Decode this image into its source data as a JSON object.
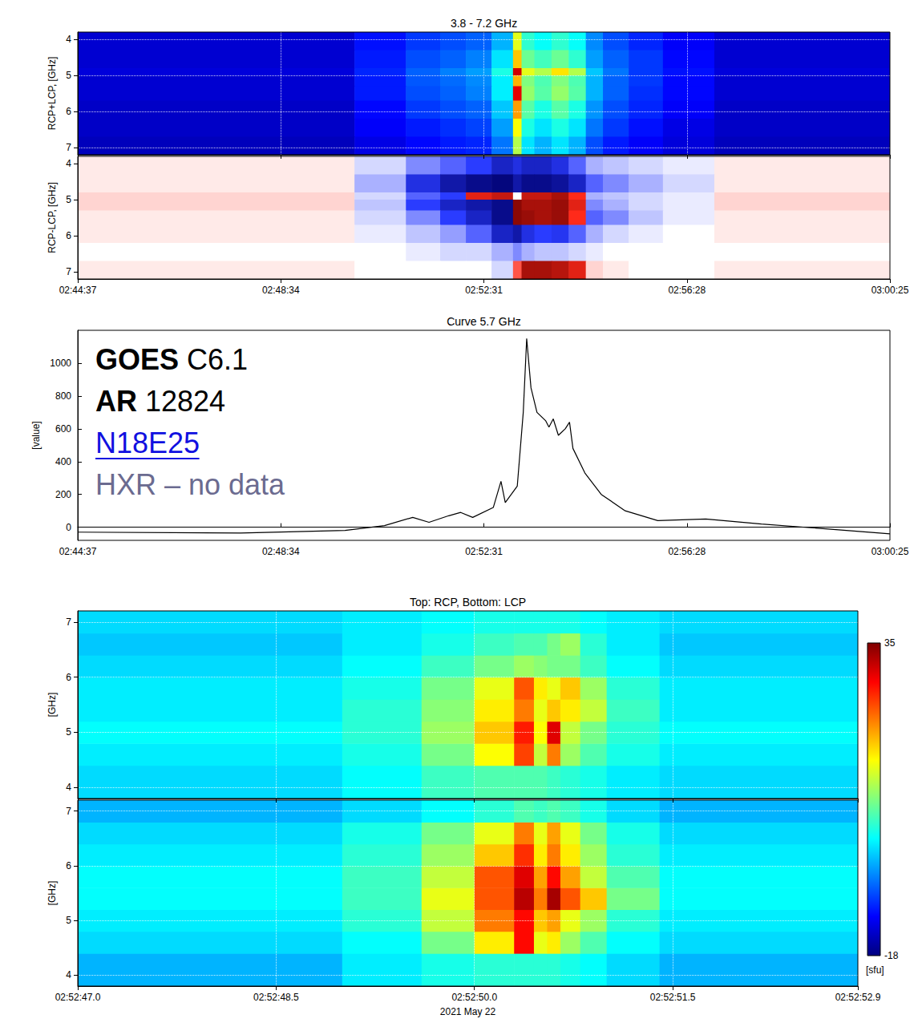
{
  "chart_data": [
    {
      "type": "heatmap",
      "title": "3.8 - 7.2 GHz",
      "ylabel": "RCP+LCP, [GHz]",
      "color": "jet",
      "grid": true,
      "tick_labels": "y",
      "x_edges": [
        9877,
        10200,
        10260,
        10300,
        10330,
        10360,
        10385,
        10395,
        10410,
        10430,
        10450,
        10470,
        10490,
        10520,
        10560,
        10620,
        10825
      ],
      "y_edges": [
        3.8,
        4.3,
        4.8,
        5.0,
        5.3,
        5.7,
        6.2,
        6.7,
        7.2
      ],
      "cells": [
        [
          8,
          14,
          18,
          20,
          22,
          30,
          60,
          42,
          38,
          42,
          38,
          26,
          20,
          16,
          12,
          8
        ],
        [
          8,
          15,
          20,
          22,
          25,
          35,
          68,
          48,
          44,
          48,
          42,
          28,
          22,
          18,
          13,
          8
        ],
        [
          9,
          16,
          22,
          25,
          28,
          40,
          92,
          60,
          55,
          65,
          55,
          32,
          24,
          18,
          14,
          9
        ],
        [
          8,
          15,
          21,
          23,
          26,
          36,
          70,
          50,
          45,
          50,
          45,
          30,
          22,
          18,
          13,
          8
        ],
        [
          8,
          15,
          20,
          22,
          25,
          36,
          90,
          52,
          46,
          52,
          46,
          30,
          22,
          17,
          13,
          8
        ],
        [
          7,
          13,
          18,
          20,
          22,
          32,
          72,
          46,
          40,
          46,
          40,
          27,
          20,
          16,
          12,
          7
        ],
        [
          7,
          12,
          15,
          17,
          19,
          28,
          62,
          40,
          35,
          40,
          35,
          24,
          18,
          14,
          10,
          7
        ],
        [
          6,
          10,
          13,
          15,
          16,
          24,
          55,
          35,
          30,
          35,
          30,
          20,
          15,
          12,
          9,
          6
        ]
      ],
      "zlim": [
        0,
        100
      ],
      "xlim": [
        9877,
        10825
      ],
      "xticks": [
        {
          "value": 9877,
          "label": "02:44:37"
        },
        {
          "value": 10114,
          "label": "02:48:34"
        },
        {
          "value": 10351,
          "label": "02:52:31"
        },
        {
          "value": 10588,
          "label": "02:56:28"
        },
        {
          "value": 10825,
          "label": "03:00:25"
        }
      ],
      "ylim": [
        7.2,
        3.8
      ],
      "yticks": [
        4,
        5,
        6,
        7
      ]
    },
    {
      "type": "heatmap",
      "ylabel": "RCP-LCP, [GHz]",
      "color": "bwr",
      "grid": false,
      "x_edges": [
        9877,
        10200,
        10260,
        10300,
        10330,
        10360,
        10385,
        10395,
        10410,
        10430,
        10450,
        10470,
        10490,
        10520,
        10560,
        10620,
        10825
      ],
      "y_edges": [
        3.8,
        4.3,
        4.8,
        5.0,
        5.3,
        5.7,
        6.2,
        6.7,
        7.2
      ],
      "cells": [
        [
          5,
          -10,
          -30,
          -40,
          -50,
          -70,
          -60,
          -70,
          -70,
          -60,
          -40,
          -20,
          -15,
          -10,
          -5,
          5
        ],
        [
          5,
          -20,
          -60,
          -80,
          -90,
          -95,
          -80,
          -90,
          -90,
          -85,
          -70,
          -40,
          -30,
          -20,
          -10,
          5
        ],
        [
          10,
          -10,
          -40,
          -50,
          60,
          70,
          0,
          70,
          70,
          80,
          50,
          -20,
          -15,
          -10,
          -5,
          10
        ],
        [
          10,
          -15,
          -50,
          -70,
          -80,
          -90,
          90,
          80,
          80,
          85,
          60,
          -30,
          -20,
          -10,
          -5,
          10
        ],
        [
          5,
          -10,
          -30,
          -50,
          -70,
          -90,
          90,
          85,
          80,
          85,
          50,
          -40,
          -30,
          -15,
          -5,
          5
        ],
        [
          5,
          -5,
          -15,
          -25,
          -40,
          -70,
          -80,
          -60,
          -50,
          -55,
          -40,
          -20,
          -10,
          -5,
          0,
          5
        ],
        [
          0,
          0,
          -5,
          -10,
          -10,
          -20,
          -30,
          -20,
          -15,
          -15,
          -10,
          -5,
          0,
          0,
          0,
          0
        ],
        [
          5,
          0,
          0,
          0,
          0,
          -10,
          40,
          80,
          80,
          75,
          60,
          10,
          5,
          0,
          0,
          5
        ]
      ],
      "zlim": [
        -100,
        100
      ],
      "xlim": [
        9877,
        10825
      ],
      "xticks": [
        {
          "value": 9877,
          "label": "02:44:37"
        },
        {
          "value": 10114,
          "label": "02:48:34"
        },
        {
          "value": 10351,
          "label": "02:52:31"
        },
        {
          "value": 10588,
          "label": "02:56:28"
        },
        {
          "value": 10825,
          "label": "03:00:25"
        }
      ],
      "ylim": [
        7.2,
        3.8
      ],
      "yticks": [
        4,
        5,
        6,
        7
      ]
    },
    {
      "type": "line",
      "title": "Curve 5.7 GHz",
      "ylabel": "[value]",
      "color": "#000000",
      "grid": false,
      "annotations": [
        "GOES C6.1",
        "AR 12824",
        "N18E25",
        "HXR – no data"
      ],
      "x": [
        9877,
        10067,
        10189,
        10235,
        10268,
        10287,
        10310,
        10324,
        10338,
        10362,
        10371,
        10376,
        10390,
        10397,
        10401,
        10406,
        10413,
        10423,
        10427,
        10432,
        10438,
        10446,
        10451,
        10455,
        10469,
        10488,
        10516,
        10554,
        10610,
        10675,
        10750,
        10825
      ],
      "values": [
        -30,
        -35,
        -20,
        10,
        60,
        30,
        70,
        90,
        60,
        120,
        280,
        150,
        250,
        700,
        1150,
        850,
        700,
        650,
        610,
        660,
        560,
        600,
        640,
        480,
        330,
        200,
        100,
        40,
        50,
        20,
        -10,
        -40
      ],
      "xlim": [
        9877,
        10825
      ],
      "xticks": [
        {
          "value": 9877,
          "label": "02:44:37"
        },
        {
          "value": 10114,
          "label": "02:48:34"
        },
        {
          "value": 10351,
          "label": "02:52:31"
        },
        {
          "value": 10588,
          "label": "02:56:28"
        },
        {
          "value": 10825,
          "label": "03:00:25"
        }
      ],
      "ylim": [
        -80,
        1200
      ],
      "yticks": [
        0,
        200,
        400,
        600,
        800,
        1000
      ]
    },
    {
      "type": "heatmap",
      "title": "Top: RCP, Bottom: LCP",
      "ylabel": "[GHz]",
      "color": "jet",
      "grid": true,
      "tick_labels": "y",
      "x_edges": [
        10367,
        10369,
        10369.6,
        10370,
        10370.3,
        10370.45,
        10370.55,
        10370.65,
        10370.8,
        10371,
        10371.4,
        10372.9
      ],
      "y_edges": [
        3.8,
        4.4,
        4.8,
        5.2,
        5.6,
        6.0,
        6.4,
        6.8,
        7.2
      ],
      "cells": [
        [
          0,
          2,
          5,
          6,
          6,
          6,
          5,
          4,
          3,
          1,
          0
        ],
        [
          1,
          3,
          8,
          15,
          25,
          12,
          22,
          10,
          6,
          3,
          1
        ],
        [
          2,
          4,
          10,
          18,
          27,
          15,
          30,
          12,
          8,
          4,
          2
        ],
        [
          1,
          4,
          9,
          16,
          22,
          14,
          18,
          16,
          12,
          5,
          1
        ],
        [
          1,
          3,
          8,
          14,
          24,
          16,
          14,
          18,
          10,
          4,
          1
        ],
        [
          0,
          2,
          5,
          8,
          10,
          9,
          8,
          8,
          5,
          2,
          0
        ],
        [
          -1,
          1,
          3,
          5,
          6,
          6,
          8,
          10,
          4,
          1,
          -1
        ],
        [
          0,
          1,
          2,
          3,
          3,
          3,
          3,
          3,
          2,
          1,
          0
        ]
      ],
      "zlim": [
        -18,
        35
      ],
      "xlim": [
        10367,
        10372.9
      ],
      "xticks": [
        {
          "value": 10367,
          "label": "02:52:47.0"
        },
        {
          "value": 10368.5,
          "label": "02:52:48.5"
        },
        {
          "value": 10370,
          "label": "02:52:50.0"
        },
        {
          "value": 10371.5,
          "label": "02:52:51.5"
        },
        {
          "value": 10372.9,
          "label": "02:52:52.9"
        }
      ],
      "ylim": [
        3.8,
        7.2
      ],
      "yticks": [
        4,
        5,
        6,
        7
      ]
    },
    {
      "type": "heatmap",
      "ylabel": "[GHz]",
      "xlabel": "2021 May 22",
      "color": "jet",
      "grid": true,
      "x_edges": [
        10367,
        10369,
        10369.6,
        10370,
        10370.3,
        10370.45,
        10370.55,
        10370.65,
        10370.8,
        10371,
        10371.4,
        10372.9
      ],
      "y_edges": [
        3.8,
        4.4,
        4.8,
        5.2,
        5.6,
        6.0,
        6.4,
        6.8,
        7.2
      ],
      "cells": [
        [
          -2,
          1,
          3,
          4,
          4,
          4,
          4,
          3,
          2,
          0,
          -2
        ],
        [
          0,
          2,
          8,
          16,
          28,
          14,
          16,
          10,
          6,
          2,
          0
        ],
        [
          1,
          4,
          12,
          22,
          28,
          18,
          20,
          14,
          10,
          4,
          1
        ],
        [
          2,
          5,
          14,
          24,
          32,
          22,
          33,
          24,
          18,
          8,
          2
        ],
        [
          2,
          5,
          12,
          24,
          30,
          20,
          28,
          20,
          12,
          6,
          2
        ],
        [
          1,
          4,
          10,
          18,
          26,
          16,
          22,
          16,
          10,
          4,
          1
        ],
        [
          0,
          3,
          8,
          14,
          22,
          14,
          20,
          14,
          8,
          3,
          0
        ],
        [
          -2,
          0,
          2,
          4,
          6,
          5,
          6,
          5,
          3,
          0,
          -2
        ]
      ],
      "zlim": [
        -18,
        35
      ],
      "colorbar": {
        "range": [
          -18,
          35
        ],
        "ticks": [
          -18,
          35
        ],
        "label": "[sfu]"
      },
      "xlim": [
        10367,
        10372.9
      ],
      "xticks": [
        {
          "value": 10367,
          "label": "02:52:47.0"
        },
        {
          "value": 10368.5,
          "label": "02:52:48.5"
        },
        {
          "value": 10370,
          "label": "02:52:50.0"
        },
        {
          "value": 10371.5,
          "label": "02:52:51.5"
        },
        {
          "value": 10372.9,
          "label": "02:52:52.9"
        }
      ],
      "ylim": [
        3.8,
        7.2
      ],
      "yticks": [
        4,
        5,
        6,
        7
      ]
    }
  ]
}
